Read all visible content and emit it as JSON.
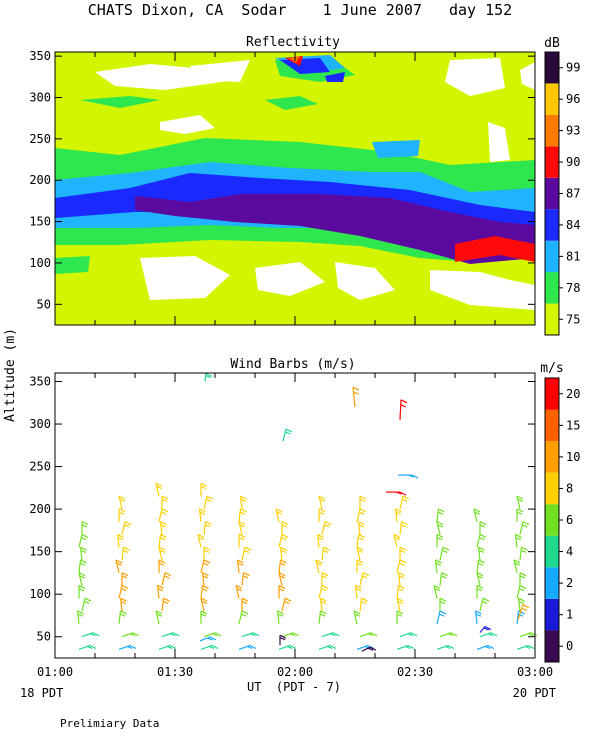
{
  "header": {
    "title": "CHATS Dixon, CA  Sodar    1 June 2007   day 152",
    "preliminary": "Prelimiary Data",
    "start_local": "18 PDT",
    "end_local": "20 PDT"
  },
  "shared_axes": {
    "ylabel": "Altitude (m)",
    "xlabel": "UT  (PDT - 7)",
    "x_ticks": [
      "01:00",
      "01:30",
      "02:00",
      "02:30",
      "03:00"
    ]
  },
  "chart_data": [
    {
      "type": "heatmap",
      "title": "Reflectivity",
      "colorbar_unit": "dB",
      "ylim": [
        25,
        355
      ],
      "y_ticks": [
        50,
        100,
        150,
        200,
        250,
        300,
        350
      ],
      "levels": [
        75,
        78,
        81,
        84,
        87,
        90,
        93,
        96,
        99
      ],
      "colors": [
        "#d4f500",
        "#2ee64d",
        "#20b4ff",
        "#1a2aff",
        "#5b0aa0",
        "#ff0a0a",
        "#ff7a00",
        "#ffc800",
        "#2a0a3a"
      ]
    },
    {
      "type": "scatter",
      "title": "Wind Barbs (m/s)",
      "colorbar_unit": "m/s",
      "ylim": [
        25,
        360
      ],
      "y_ticks": [
        50,
        100,
        150,
        200,
        250,
        300,
        350
      ],
      "levels": [
        0,
        1,
        2,
        4,
        6,
        8,
        10,
        15,
        20
      ],
      "colors": [
        "#3a0a50",
        "#1a1ad8",
        "#18aaff",
        "#20d890",
        "#70e020",
        "#ffd000",
        "#ffa000",
        "#ff6000",
        "#ff0000"
      ]
    }
  ]
}
